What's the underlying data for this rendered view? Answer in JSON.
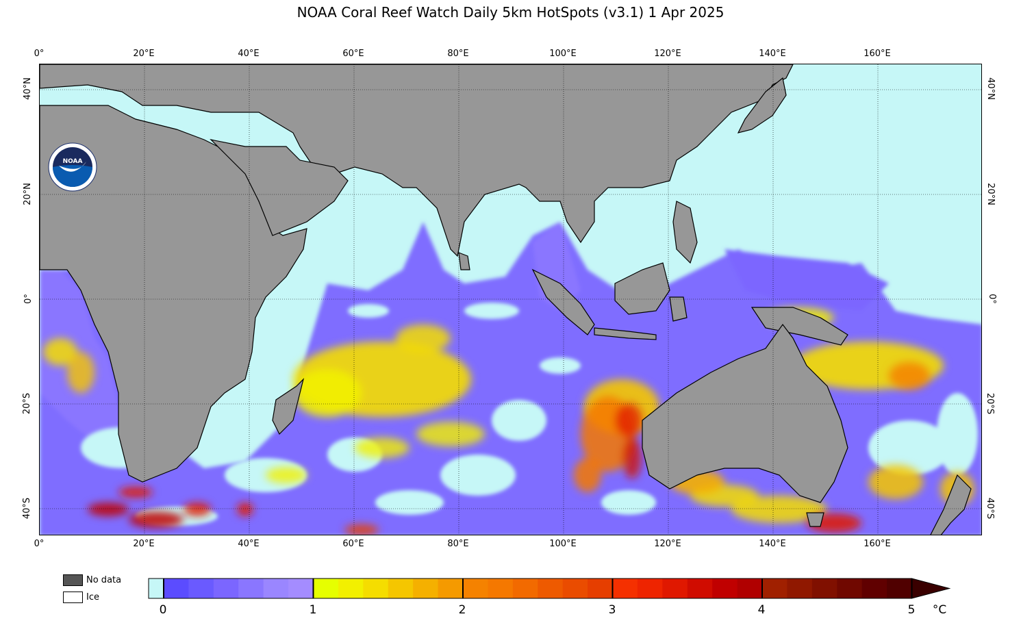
{
  "title": "NOAA Coral Reef Watch Daily 5km HotSpots  (v3.1)   1 Apr 2025",
  "x_ticks": [
    "0°",
    "20°E",
    "40°E",
    "60°E",
    "80°E",
    "100°E",
    "120°E",
    "140°E",
    "160°E"
  ],
  "y_ticks_left": [
    "40°N",
    "20°N",
    "0°",
    "20°S",
    "40°S"
  ],
  "y_ticks_right": [
    "40°N",
    "20°N",
    "0°",
    "20°S",
    "40°S"
  ],
  "legend": {
    "no_data": "No data",
    "ice": "Ice"
  },
  "colorbar": {
    "labels": [
      "0",
      "1",
      "2",
      "3",
      "4",
      "5"
    ],
    "unit": "°C",
    "colors": {
      "zero": "#c6f7f7",
      "purple": [
        "#5b4cff",
        "#6a5aff",
        "#7b66ff",
        "#8a76ff",
        "#9a86ff",
        "#a48cff"
      ],
      "yellow": [
        "#e6ff00",
        "#f2f000",
        "#f5dd00",
        "#f5c600",
        "#f5b000",
        "#f59a00"
      ],
      "orange": [
        "#f58200",
        "#f57800",
        "#f26a00",
        "#ee5a00",
        "#ea4c00",
        "#e63e00"
      ],
      "red": [
        "#f53000",
        "#ee2400",
        "#e01800",
        "#d00c00",
        "#c00000",
        "#b00000"
      ],
      "darkred": [
        "#a02000",
        "#901800",
        "#801000",
        "#700800",
        "#600000",
        "#500000"
      ]
    }
  },
  "map_colors": {
    "ocean_normal": "#c6f7f7",
    "land": "#979797",
    "no_data": "#555555"
  }
}
